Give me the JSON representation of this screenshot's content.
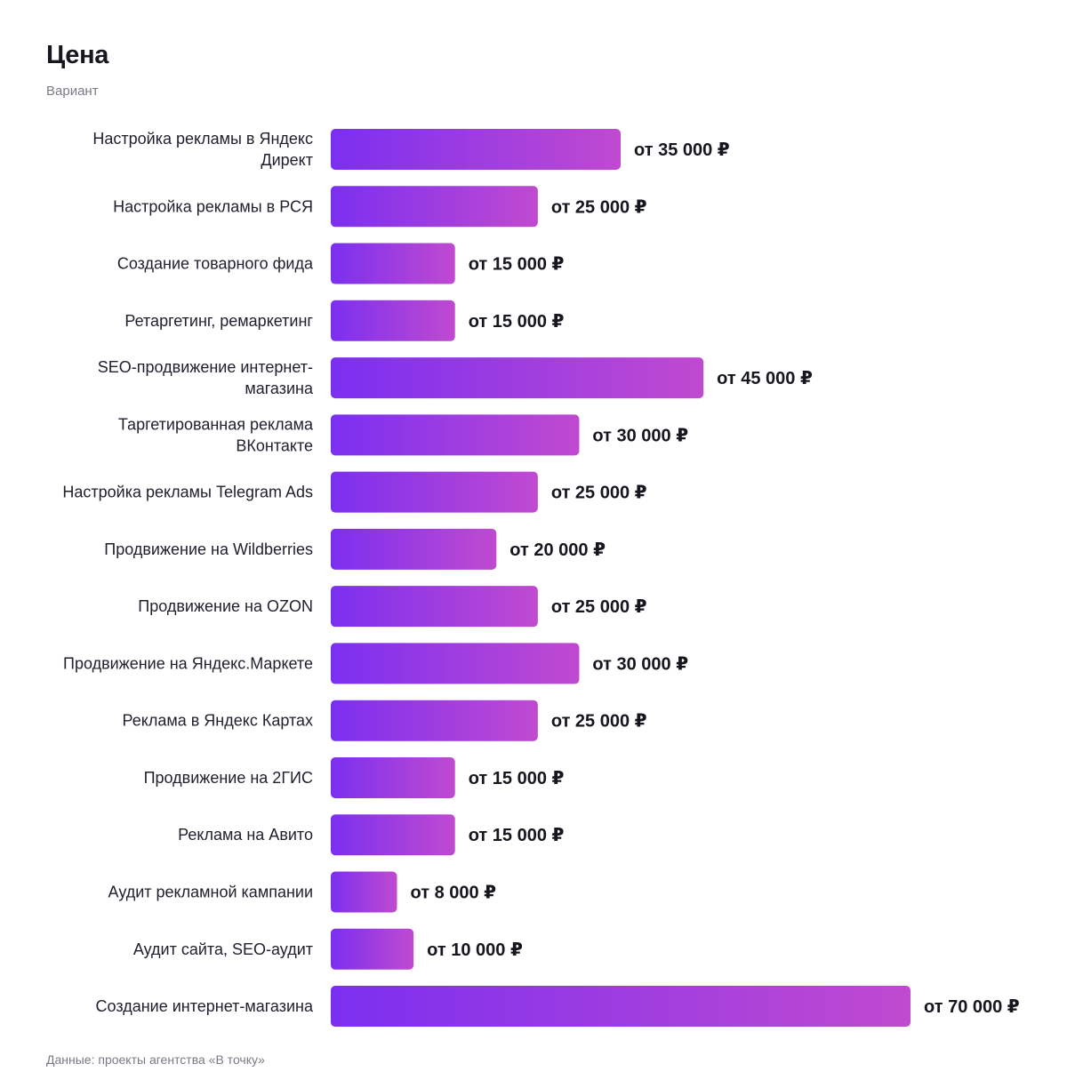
{
  "header": {
    "title": "Цена",
    "subtitle": "Вариант"
  },
  "footer": {
    "source": "Данные: проекты агентства «В точку»"
  },
  "colors": {
    "bar_start": "#7b2ff0",
    "bar_end": "#c04ad0"
  },
  "chart_data": {
    "type": "bar",
    "orientation": "horizontal",
    "categories": [
      [
        "Настройка рекламы в Яндекс",
        "Директ"
      ],
      [
        "Настройка рекламы в РСЯ"
      ],
      [
        "Создание товарного фида"
      ],
      [
        "Ретаргетинг, ремаркетинг"
      ],
      [
        "SEO-продвижение интернет-",
        "магазина"
      ],
      [
        "Таргетированная реклама",
        "ВКонтакте"
      ],
      [
        "Настройка рекламы Telegram Ads"
      ],
      [
        "Продвижение на Wildberries"
      ],
      [
        "Продвижение на OZON"
      ],
      [
        "Продвижение на Яндекс.Маркете"
      ],
      [
        "Реклама в Яндекс Картах"
      ],
      [
        "Продвижение на 2ГИС"
      ],
      [
        "Реклама на Авито"
      ],
      [
        "Аудит рекламной кампании"
      ],
      [
        "Аудит сайта, SEO-аудит"
      ],
      [
        "Создание интернет-магазина"
      ]
    ],
    "values": [
      35000,
      25000,
      15000,
      15000,
      45000,
      30000,
      25000,
      20000,
      25000,
      30000,
      25000,
      15000,
      15000,
      8000,
      10000,
      70000
    ],
    "value_labels": [
      "от 35 000 ₽",
      "от 25 000 ₽",
      "от 15 000 ₽",
      "от 15 000 ₽",
      "от 45 000 ₽",
      "от 30 000 ₽",
      "от 25 000 ₽",
      "от 20 000 ₽",
      "от 25 000 ₽",
      "от 30 000 ₽",
      "от 25 000 ₽",
      "от 15 000 ₽",
      "от 15 000 ₽",
      "от 8 000 ₽",
      "от 10 000 ₽",
      "от 70 000 ₽"
    ],
    "xlim": [
      0,
      70000
    ],
    "grid": false,
    "legend": "none"
  }
}
